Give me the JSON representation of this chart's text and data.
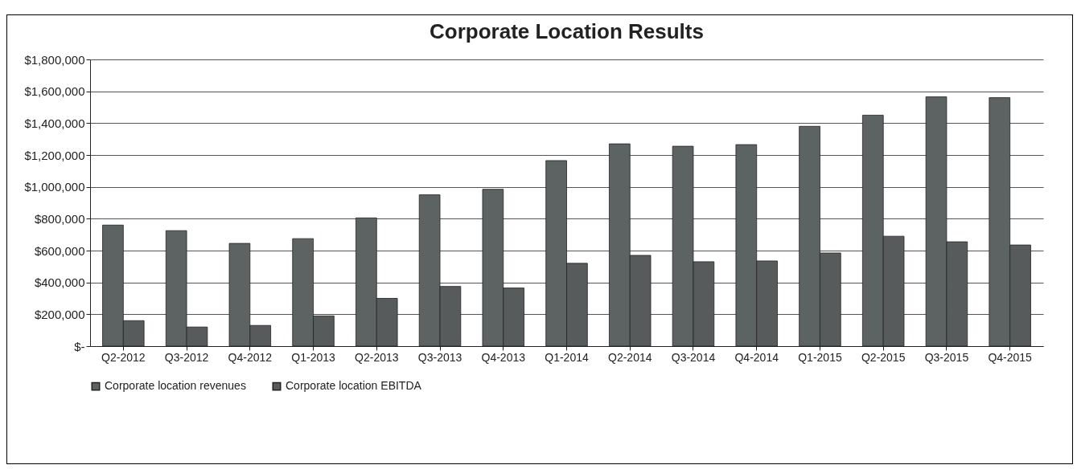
{
  "chart_data": {
    "type": "bar",
    "title": "Corporate Location Results",
    "categories": [
      "Q2-2012",
      "Q3-2012",
      "Q4-2012",
      "Q1-2013",
      "Q2-2013",
      "Q3-2013",
      "Q4-2013",
      "Q1-2014",
      "Q2-2014",
      "Q3-2014",
      "Q4-2014",
      "Q1-2015",
      "Q2-2015",
      "Q3-2015",
      "Q4-2015"
    ],
    "series": [
      {
        "name": "Corporate location revenues",
        "color": "#5d6262",
        "values": [
          760000,
          725000,
          645000,
          675000,
          805000,
          950000,
          985000,
          1165000,
          1270000,
          1255000,
          1265000,
          1380000,
          1450000,
          1565000,
          1560000
        ]
      },
      {
        "name": "Corporate location EBITDA",
        "color": "#575b5b",
        "values": [
          160000,
          120000,
          130000,
          190000,
          300000,
          375000,
          365000,
          520000,
          570000,
          530000,
          535000,
          585000,
          690000,
          655000,
          635000
        ]
      }
    ],
    "ylim": [
      0,
      1800000
    ],
    "yticks": [
      {
        "value": 0,
        "label": "$-"
      },
      {
        "value": 200000,
        "label": "$200,000"
      },
      {
        "value": 400000,
        "label": "$400,000"
      },
      {
        "value": 600000,
        "label": "$600,000"
      },
      {
        "value": 800000,
        "label": "$800,000"
      },
      {
        "value": 1000000,
        "label": "$1,000,000"
      },
      {
        "value": 1200000,
        "label": "$1,200,000"
      },
      {
        "value": 1400000,
        "label": "$1,400,000"
      },
      {
        "value": 1600000,
        "label": "$1,600,000"
      },
      {
        "value": 1800000,
        "label": "$1,800,000"
      }
    ],
    "grid": "y",
    "legend": "bottom"
  }
}
